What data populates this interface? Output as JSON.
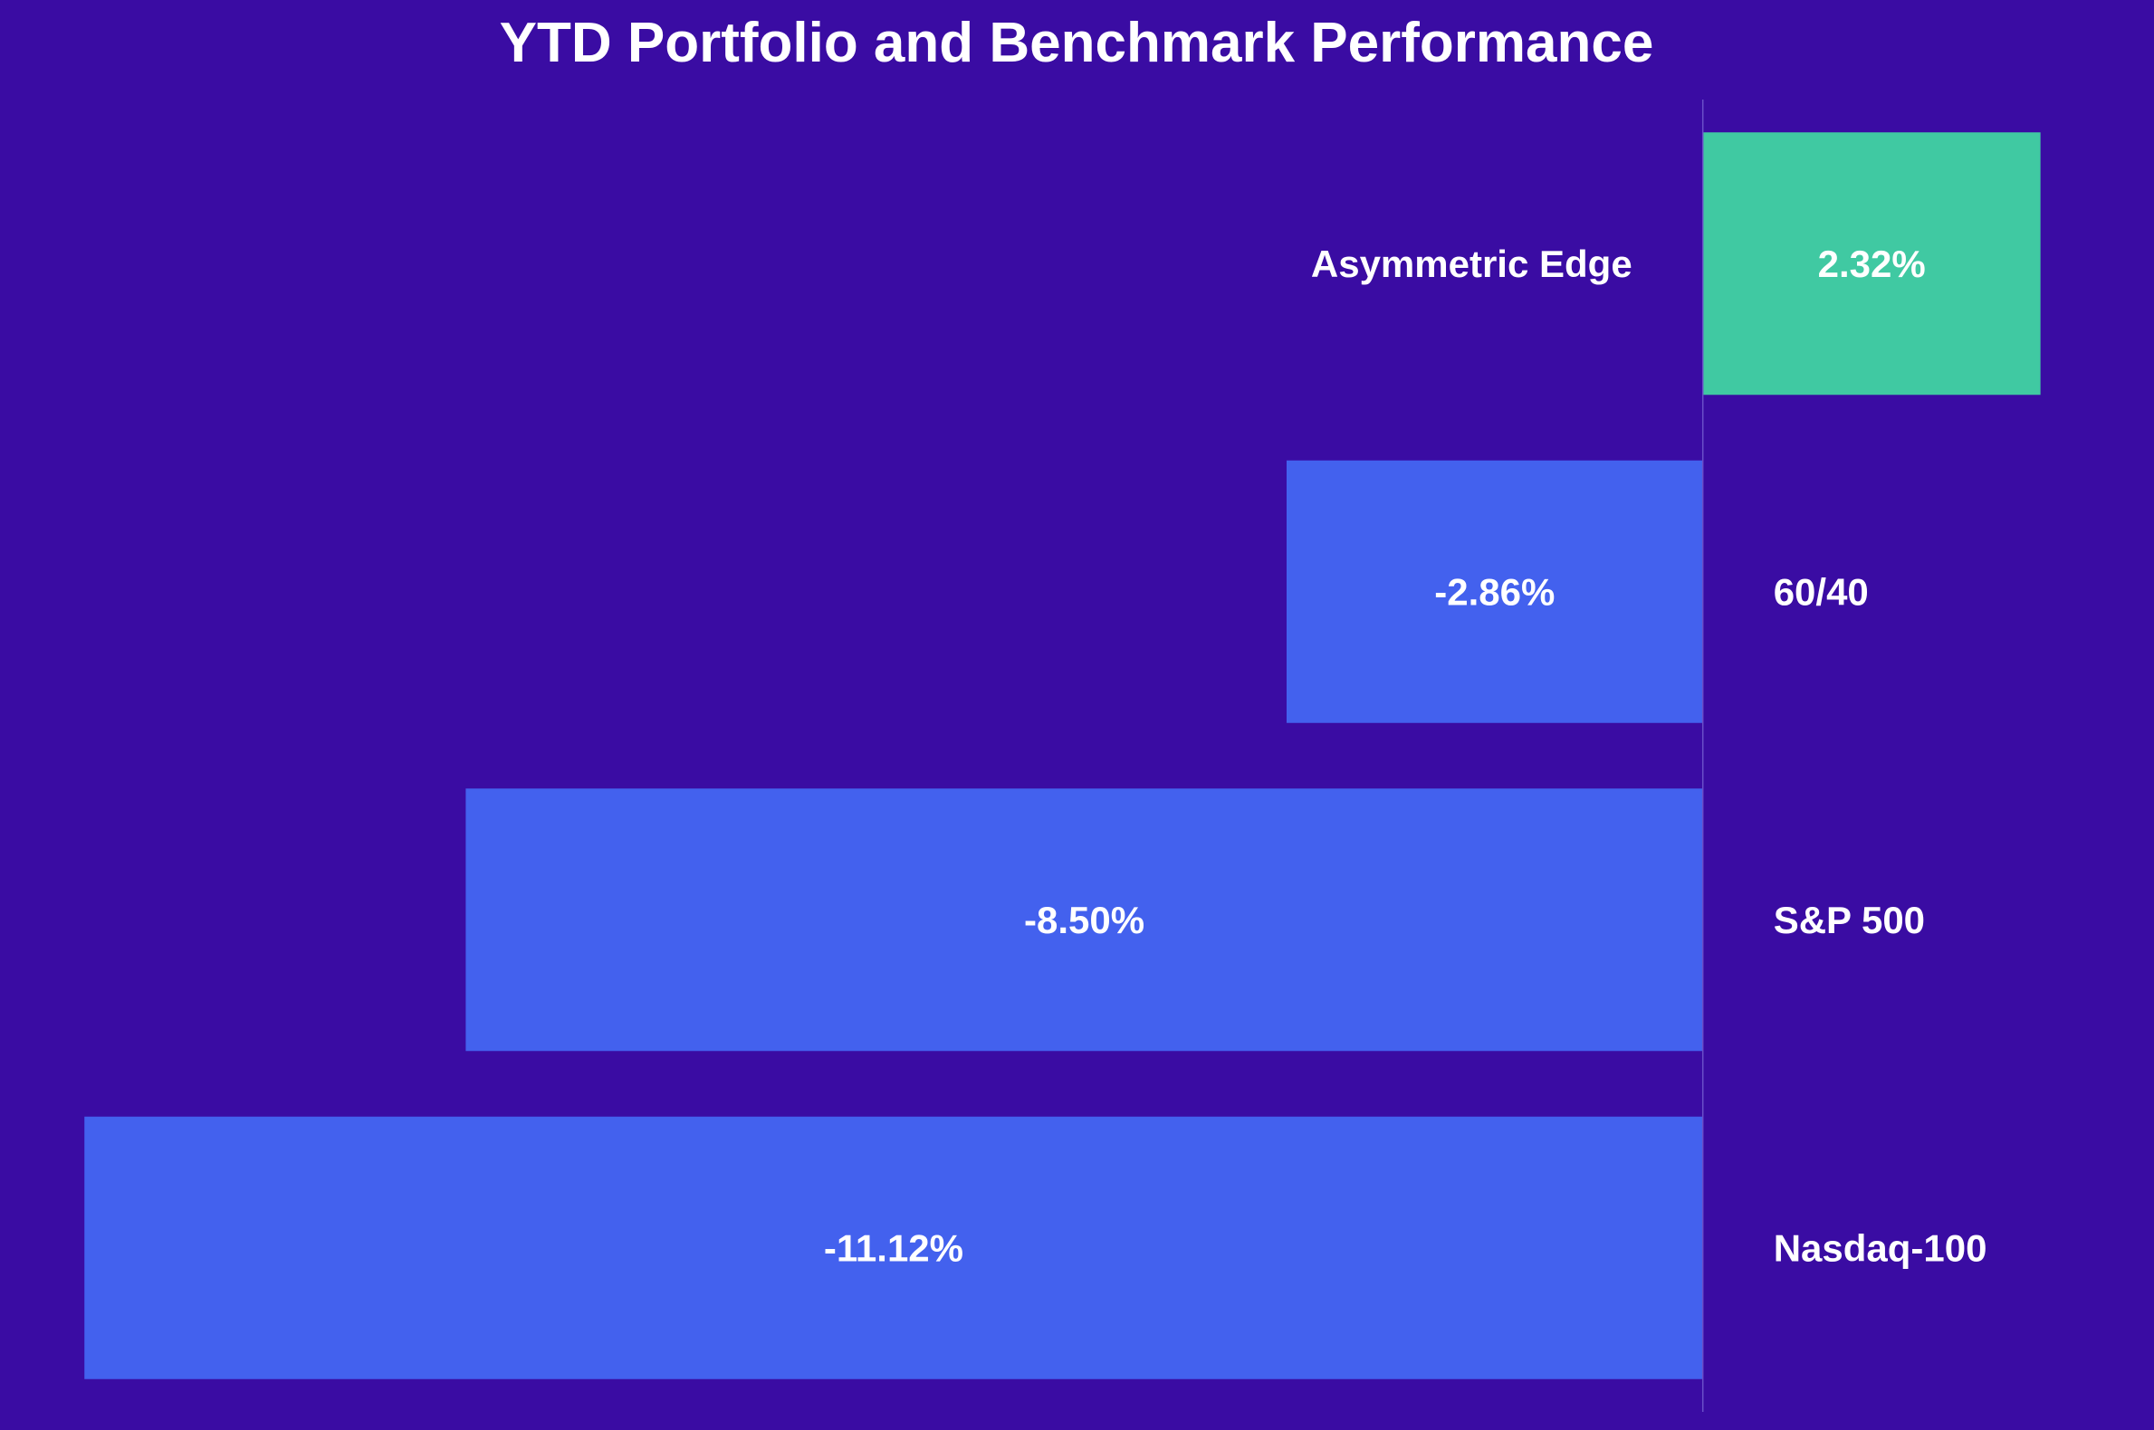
{
  "chart_data": {
    "type": "bar",
    "orientation": "horizontal",
    "title": "YTD Portfolio and Benchmark Performance",
    "xlabel": "",
    "ylabel": "",
    "grid": false,
    "legend": "none",
    "categories": [
      "Asymmetric Edge",
      "60/40",
      "S&P 500",
      "Nasdaq-100"
    ],
    "values": [
      2.32,
      -2.86,
      -8.5,
      -11.12
    ],
    "value_labels": [
      "2.32%",
      "-2.86%",
      "-8.50%",
      "-11.12%"
    ],
    "unit": "%",
    "xlim": [
      -11.7,
      3.1
    ],
    "colors": {
      "background": "#3A0CA3",
      "positive_bar": "#40C9A2",
      "negative_bar": "#4361EE",
      "text": "#FFFFFF",
      "zero_line": "#6A4FC8"
    }
  }
}
